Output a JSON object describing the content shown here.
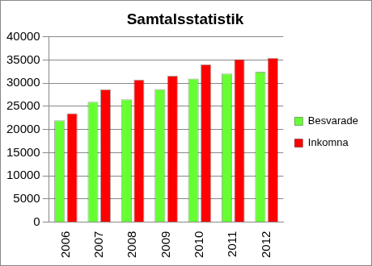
{
  "chart_data": {
    "type": "bar",
    "title": "Samtalsstatistik",
    "categories": [
      "2006",
      "2007",
      "2008",
      "2009",
      "2010",
      "2011",
      "2012"
    ],
    "series": [
      {
        "name": "Besvarade",
        "color": "#66ff33",
        "values": [
          22000,
          26000,
          26500,
          28700,
          31000,
          32100,
          32500
        ]
      },
      {
        "name": "Inkomna",
        "color": "#ff0000",
        "values": [
          23500,
          28700,
          30800,
          31600,
          34100,
          35200,
          35500
        ]
      }
    ],
    "ylim": [
      0,
      40000
    ],
    "yticks": [
      0,
      5000,
      10000,
      15000,
      20000,
      25000,
      30000,
      35000,
      40000
    ],
    "grid": true,
    "legend": "right"
  }
}
